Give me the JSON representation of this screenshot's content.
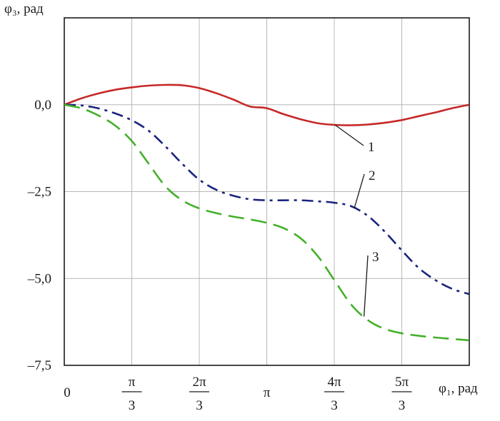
{
  "chart_data": {
    "type": "line",
    "ylabel": "φ₃, рад",
    "xlabel": "φ₁, рад",
    "xlim": [
      0,
      6.2832
    ],
    "ylim": [
      -7.5,
      2.5
    ],
    "grid": true,
    "y_ticks": [
      {
        "value": 0.0,
        "label": "0,0"
      },
      {
        "value": -2.5,
        "label": "–2,5"
      },
      {
        "value": -5.0,
        "label": "–5,0"
      },
      {
        "value": -7.5,
        "label": "–7,5"
      }
    ],
    "x_ticks": [
      {
        "value": 0,
        "num": "0",
        "den": ""
      },
      {
        "value": 1.0472,
        "num": "π",
        "den": "3"
      },
      {
        "value": 2.0944,
        "num": "2π",
        "den": "3"
      },
      {
        "value": 3.1416,
        "num": "π",
        "den": ""
      },
      {
        "value": 4.1888,
        "num": "4π",
        "den": "3"
      },
      {
        "value": 5.236,
        "num": "5π",
        "den": "3"
      }
    ],
    "series": [
      {
        "name": "1",
        "color": "#c62828",
        "style": "solid",
        "x": [
          0,
          0.26,
          0.52,
          0.79,
          1.05,
          1.31,
          1.57,
          1.83,
          2.09,
          2.36,
          2.62,
          2.88,
          3.14,
          3.4,
          3.67,
          3.93,
          4.19,
          4.45,
          4.71,
          4.97,
          5.24,
          5.5,
          5.76,
          6.02,
          6.28
        ],
        "values": [
          0,
          0.18,
          0.32,
          0.43,
          0.5,
          0.55,
          0.57,
          0.56,
          0.48,
          0.33,
          0.15,
          -0.05,
          -0.1,
          -0.27,
          -0.42,
          -0.53,
          -0.58,
          -0.59,
          -0.57,
          -0.52,
          -0.44,
          -0.33,
          -0.22,
          -0.1,
          0
        ]
      },
      {
        "name": "2",
        "color": "#1a237e",
        "style": "dashdot",
        "x": [
          0,
          0.26,
          0.52,
          0.79,
          1.05,
          1.31,
          1.57,
          1.83,
          2.09,
          2.36,
          2.62,
          2.88,
          3.14,
          3.4,
          3.67,
          3.93,
          4.19,
          4.45,
          4.71,
          4.97,
          5.24,
          5.5,
          5.76,
          6.02,
          6.28
        ],
        "values": [
          0,
          -0.02,
          -0.1,
          -0.25,
          -0.45,
          -0.75,
          -1.2,
          -1.7,
          -2.15,
          -2.45,
          -2.62,
          -2.72,
          -2.75,
          -2.75,
          -2.75,
          -2.78,
          -2.82,
          -2.92,
          -3.2,
          -3.65,
          -4.2,
          -4.7,
          -5.05,
          -5.3,
          -5.45
        ]
      },
      {
        "name": "3",
        "color": "#43b02a",
        "style": "dashed",
        "x": [
          0,
          0.26,
          0.52,
          0.79,
          1.05,
          1.31,
          1.57,
          1.83,
          2.09,
          2.36,
          2.62,
          2.88,
          3.14,
          3.4,
          3.67,
          3.93,
          4.19,
          4.45,
          4.71,
          4.97,
          5.24,
          5.5,
          5.76,
          6.02,
          6.28
        ],
        "values": [
          0,
          -0.1,
          -0.3,
          -0.6,
          -1.05,
          -1.7,
          -2.35,
          -2.75,
          -2.98,
          -3.12,
          -3.22,
          -3.3,
          -3.4,
          -3.55,
          -3.85,
          -4.35,
          -5.05,
          -5.75,
          -6.2,
          -6.45,
          -6.58,
          -6.65,
          -6.7,
          -6.74,
          -6.78
        ]
      }
    ],
    "annotations": [
      {
        "label": "1",
        "x": 4.2,
        "y": -1.2
      },
      {
        "label": "2",
        "x": 4.5,
        "y": -1.95
      },
      {
        "label": "3",
        "x": 4.65,
        "y": -4.3
      }
    ]
  }
}
